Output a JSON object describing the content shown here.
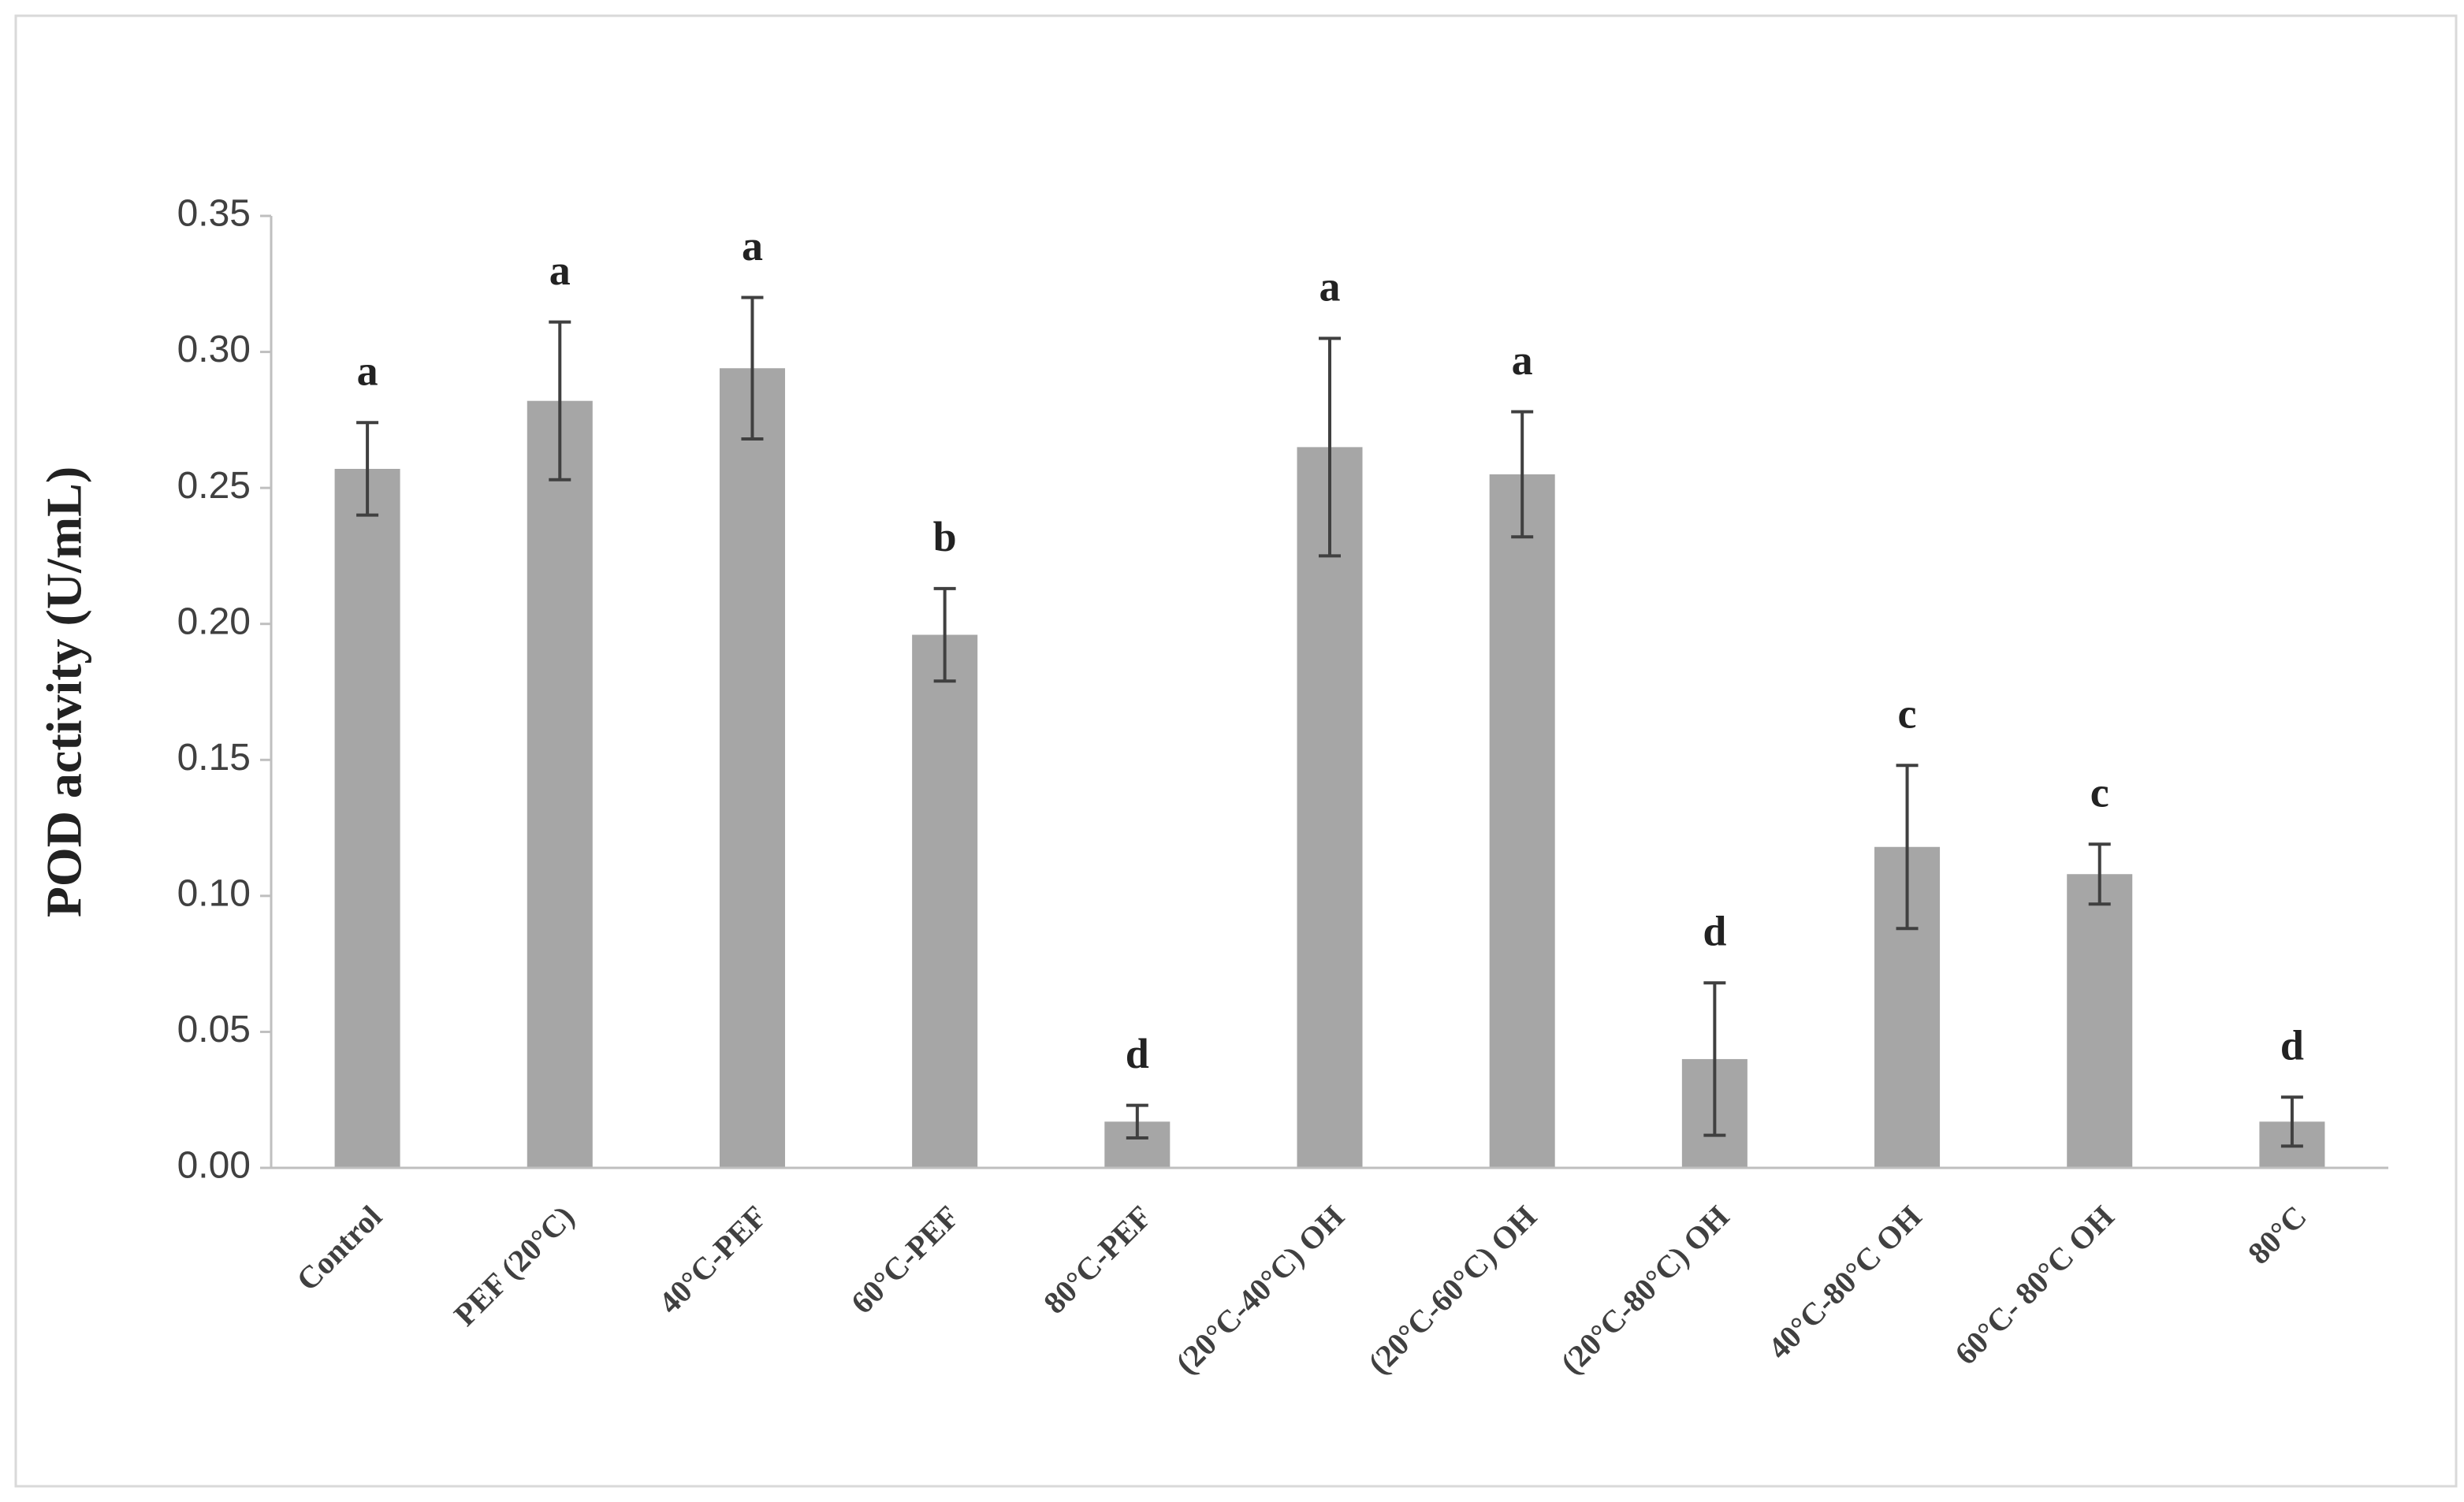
{
  "chart_data": {
    "type": "bar",
    "y_label": "POD activity (U/mL)",
    "categories": [
      "Control",
      "PEF (20°C)",
      "40°C-PEF",
      "60°C-PEF",
      "80°C-PEF",
      "(20°C-40°C) OH",
      "(20°C-60°C) OH",
      "(20°C-80°C) OH",
      "40°C-80°C OH",
      "60°C- 80°C OH",
      "80°C"
    ],
    "values": [
      0.257,
      0.282,
      0.294,
      0.196,
      0.017,
      0.265,
      0.255,
      0.04,
      0.118,
      0.108,
      0.017
    ],
    "errors": [
      0.017,
      0.029,
      0.026,
      0.017,
      0.006,
      0.04,
      0.023,
      0.028,
      0.03,
      0.011,
      0.009
    ],
    "letters": [
      "a",
      "a",
      "a",
      "b",
      "d",
      "a",
      "a",
      "d",
      "c",
      "c",
      "d"
    ],
    "color": "#a6a6a6",
    "error_color": "#404040",
    "ylim": [
      0,
      0.35
    ],
    "yticks": [
      {
        "value": 0,
        "label": "0.00"
      },
      0.05,
      {
        "value": 0.1,
        "label": "0.10"
      },
      0.15,
      {
        "value": 0.2,
        "label": "0.20"
      },
      0.25,
      {
        "value": 0.3,
        "label": "0.30"
      },
      0.35
    ],
    "grid": false
  }
}
